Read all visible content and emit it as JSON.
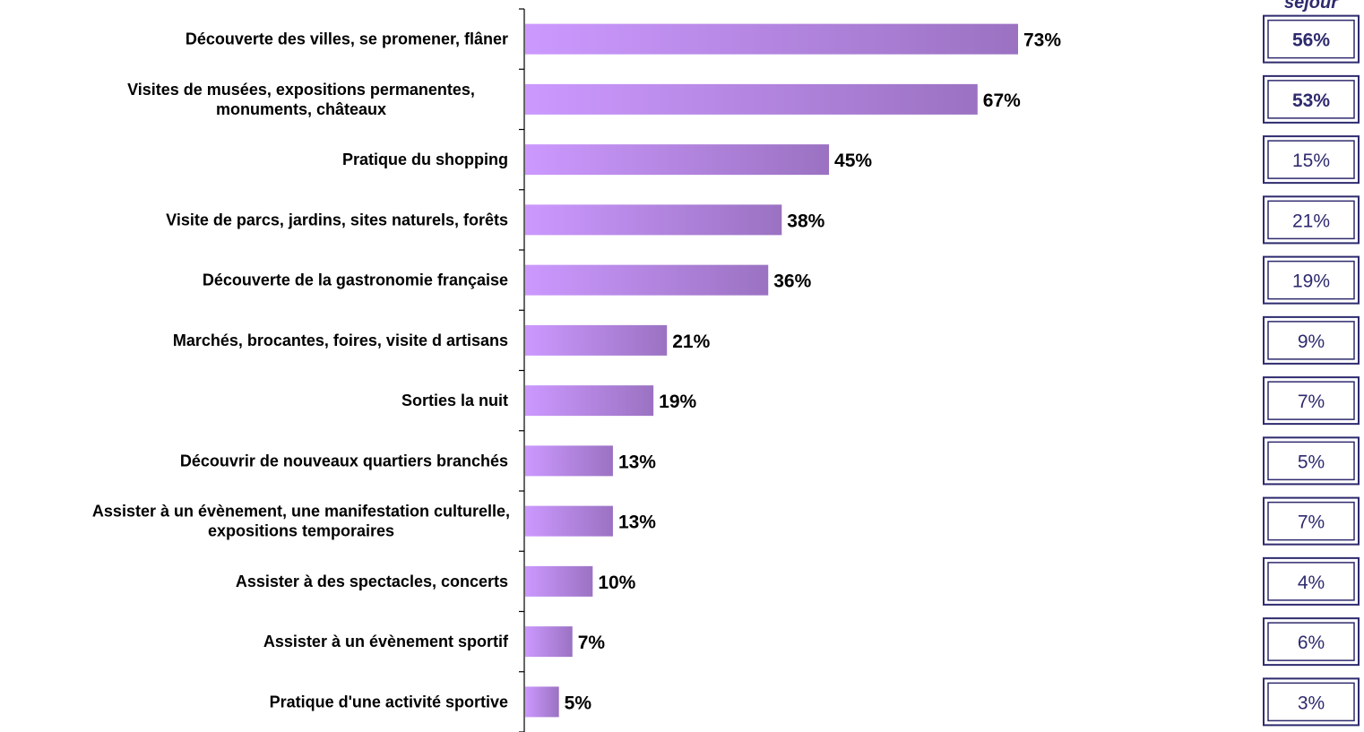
{
  "chart_data": {
    "type": "bar",
    "orientation": "horizontal",
    "categories": [
      [
        "Découverte des villes, se promener, flâner"
      ],
      [
        "Visites de musées, expositions permanentes,",
        "monuments, châteaux"
      ],
      [
        "Pratique du shopping"
      ],
      [
        "Visite de parcs, jardins, sites naturels, forêts"
      ],
      [
        "Découverte de la gastronomie française"
      ],
      [
        "Marchés, brocantes, foires, visite d artisans"
      ],
      [
        "Sorties la nuit"
      ],
      [
        "Découvrir de nouveaux quartiers branchés"
      ],
      [
        "Assister à un évènement, une manifestation culturelle,",
        "expositions temporaires"
      ],
      [
        "Assister à des spectacles, concerts"
      ],
      [
        "Assister à un évènement sportif"
      ],
      [
        "Pratique d'une activité sportive"
      ]
    ],
    "values": [
      73,
      67,
      45,
      38,
      36,
      21,
      19,
      13,
      13,
      10,
      7,
      5
    ],
    "value_labels": [
      "73%",
      "67%",
      "45%",
      "38%",
      "36%",
      "21%",
      "19%",
      "13%",
      "13%",
      "10%",
      "7%",
      "5%"
    ],
    "side_column": {
      "header": "séjour",
      "values": [
        56,
        53,
        15,
        21,
        19,
        9,
        7,
        5,
        7,
        4,
        6,
        3
      ],
      "labels": [
        "56%",
        "53%",
        "15%",
        "21%",
        "19%",
        "9%",
        "7%",
        "5%",
        "7%",
        "4%",
        "6%",
        "3%"
      ],
      "bold": [
        true,
        true,
        false,
        false,
        false,
        false,
        false,
        false,
        false,
        false,
        false,
        false
      ]
    },
    "xlim": [
      0,
      100
    ],
    "grid": false,
    "colors": {
      "bar_start": "#cc99ff",
      "bar_end": "#9b72c2",
      "box_border": "#2e2a6e",
      "box_text": "#2e2a6e"
    }
  }
}
